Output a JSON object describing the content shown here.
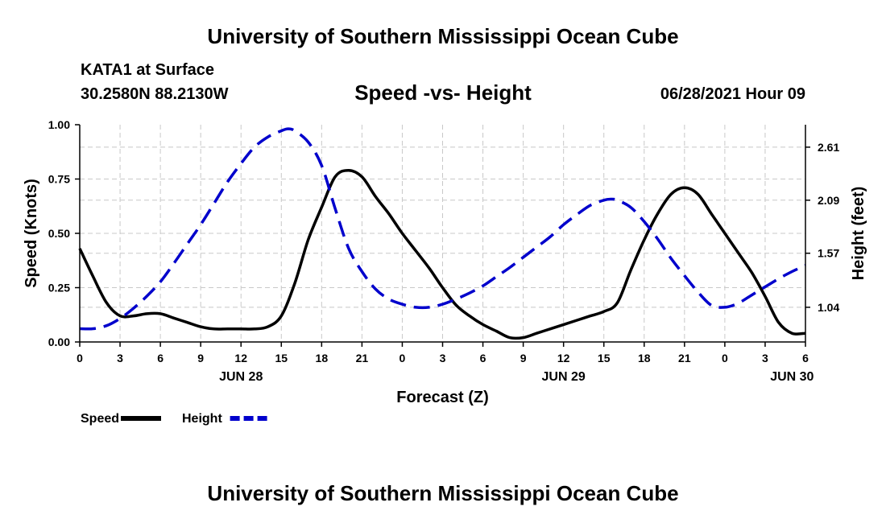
{
  "header": {
    "title": "University of Southern Mississippi Ocean Cube",
    "station": "KATA1 at Surface",
    "coordinates": "30.2580N  88.2130W",
    "subtitle": "Speed -vs- Height",
    "timestamp": "06/28/2021 Hour 09"
  },
  "footer": {
    "title": "University of Southern Mississippi Ocean Cube"
  },
  "chart_data": {
    "type": "line",
    "title": "Speed -vs- Height",
    "xlabel": "Forecast (Z)",
    "ylabel": "Speed (Knots)",
    "y2label": "Height (feet)",
    "xlim": [
      0,
      54
    ],
    "ylim": [
      0,
      1.0
    ],
    "y2lim": [
      0.7,
      2.83
    ],
    "x_ticks": [
      0,
      3,
      6,
      9,
      12,
      15,
      18,
      21,
      24,
      27,
      30,
      33,
      36,
      39,
      42,
      45,
      48,
      51,
      54
    ],
    "x_tick_labels": [
      "0",
      "3",
      "6",
      "9",
      "12",
      "15",
      "18",
      "21",
      "0",
      "3",
      "6",
      "9",
      "12",
      "15",
      "18",
      "21",
      "0",
      "3",
      "6"
    ],
    "date_labels": [
      {
        "x": 12,
        "label": "JUN 28"
      },
      {
        "x": 36,
        "label": "JUN 29"
      },
      {
        "x": 53,
        "label": "JUN 30"
      }
    ],
    "y_ticks": [
      0,
      0.25,
      0.5,
      0.75,
      1.0
    ],
    "y_tick_labels": [
      "0.00",
      "0.25",
      "0.50",
      "0.75",
      "1.00"
    ],
    "y2_ticks": [
      1.04,
      1.57,
      2.09,
      2.61
    ],
    "y2_tick_labels": [
      "1.04",
      "1.57",
      "2.09",
      "2.61"
    ],
    "grid": true,
    "legend": [
      {
        "name": "Speed",
        "color": "#000000",
        "dash": "solid"
      },
      {
        "name": "Height",
        "color": "#0000cc",
        "dash": "dashed"
      }
    ],
    "series": [
      {
        "name": "Speed",
        "axis": "left",
        "color": "#000000",
        "x": [
          0,
          1,
          2,
          3,
          4,
          5,
          6,
          7,
          8,
          9,
          10,
          11,
          12,
          13,
          14,
          15,
          16,
          17,
          18,
          19,
          20,
          21,
          22,
          23,
          24,
          25,
          26,
          27,
          28,
          29,
          30,
          31,
          32,
          33,
          34,
          35,
          36,
          37,
          38,
          39,
          40,
          41,
          42,
          43,
          44,
          45,
          46,
          47,
          48,
          49,
          50,
          51,
          52,
          53,
          54
        ],
        "y": [
          0.43,
          0.3,
          0.18,
          0.12,
          0.12,
          0.13,
          0.13,
          0.11,
          0.09,
          0.07,
          0.06,
          0.06,
          0.06,
          0.06,
          0.07,
          0.12,
          0.27,
          0.47,
          0.62,
          0.76,
          0.79,
          0.76,
          0.67,
          0.59,
          0.5,
          0.42,
          0.34,
          0.25,
          0.17,
          0.12,
          0.08,
          0.05,
          0.02,
          0.02,
          0.04,
          0.06,
          0.08,
          0.1,
          0.12,
          0.14,
          0.18,
          0.33,
          0.47,
          0.59,
          0.68,
          0.71,
          0.68,
          0.59,
          0.5,
          0.41,
          0.32,
          0.21,
          0.09,
          0.04,
          0.04
        ]
      },
      {
        "name": "Height",
        "axis": "right",
        "color": "#0000cc",
        "x": [
          0,
          1,
          2,
          3,
          4,
          5,
          6,
          7,
          8,
          9,
          10,
          11,
          12,
          13,
          14,
          15,
          15.5,
          16,
          17,
          18,
          19,
          20,
          21,
          22,
          23,
          24,
          25,
          26,
          27,
          28,
          29,
          30,
          31,
          32,
          33,
          34,
          35,
          36,
          37,
          38,
          39,
          39.5,
          40,
          41,
          42,
          43,
          44,
          45,
          46,
          47,
          48,
          49,
          50,
          51,
          52,
          53,
          54
        ],
        "y": [
          0.83,
          0.83,
          0.86,
          0.93,
          1.03,
          1.15,
          1.29,
          1.47,
          1.66,
          1.85,
          2.06,
          2.27,
          2.45,
          2.61,
          2.71,
          2.77,
          2.79,
          2.77,
          2.66,
          2.43,
          2.01,
          1.62,
          1.39,
          1.22,
          1.12,
          1.07,
          1.04,
          1.04,
          1.07,
          1.12,
          1.18,
          1.25,
          1.34,
          1.43,
          1.53,
          1.63,
          1.73,
          1.85,
          1.95,
          2.04,
          2.09,
          2.1,
          2.09,
          2.02,
          1.88,
          1.71,
          1.52,
          1.35,
          1.19,
          1.06,
          1.04,
          1.08,
          1.16,
          1.24,
          1.32,
          1.39,
          1.45
        ]
      }
    ]
  }
}
